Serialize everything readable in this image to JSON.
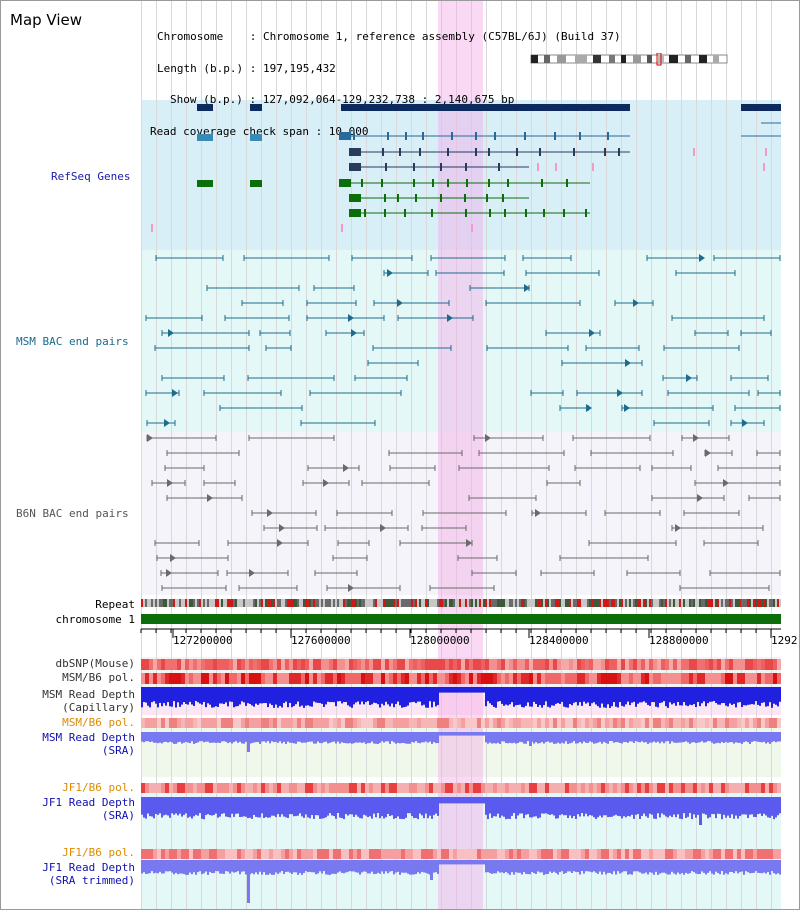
{
  "header": {
    "title": "Map View",
    "info_lines": [
      "Chromosome    : Chromosome 1, reference assembly (C57BL/6J) (Build 37)",
      "Length (b.p.) : 197,195,432",
      "Show (b.p.) : 127,092,064-129,232,738 : 2,140,675 bp",
      "Read coverage check span : 10,000"
    ]
  },
  "tracks": {
    "refseq": "RefSeq Genes",
    "msm_bac": "MSM BAC end pairs",
    "b6n_bac": "B6N BAC end pairs",
    "repeat": "Repeat",
    "chromosome": "chromosome 1"
  },
  "axis": {
    "ticks": [
      "127200000",
      "127600000",
      "128000000",
      "128400000",
      "128800000",
      "1292"
    ]
  },
  "lower_tracks": {
    "dbsnp": "dbSNP(Mouse)",
    "msm_b6_pol": "MSM/B6 pol.",
    "msm_read_depth_cap_1": "MSM Read Depth",
    "msm_read_depth_cap_2": "(Capillary)",
    "msm_b6_pol_2": "MSM/B6 pol.",
    "msm_read_depth_sra_1": "MSM Read Depth",
    "msm_read_depth_sra_2": "(SRA)",
    "jf1_b6_pol": "JF1/B6 pol.",
    "jf1_read_depth_sra_1": "JF1 Read Depth",
    "jf1_read_depth_sra_2": "(SRA)",
    "jf1_b6_pol_2": "JF1/B6 pol.",
    "jf1_read_depth_trim_1": "JF1 Read Depth",
    "jf1_read_depth_trim_2": "(SRA trimmed)"
  },
  "colors": {
    "refseq_bg": "#d8eff8",
    "refseq_label": "#1a1aa8",
    "msm_bg": "#e4f8f8",
    "msm_label": "#1a6a8a",
    "b6n_bg": "#f4f4fa",
    "b6n_label": "#555555",
    "orange_label": "#e08a00",
    "blue_label": "#1010b0",
    "highlight": "#f5aae6",
    "chromosome_bar": "#0b6e0b"
  }
}
